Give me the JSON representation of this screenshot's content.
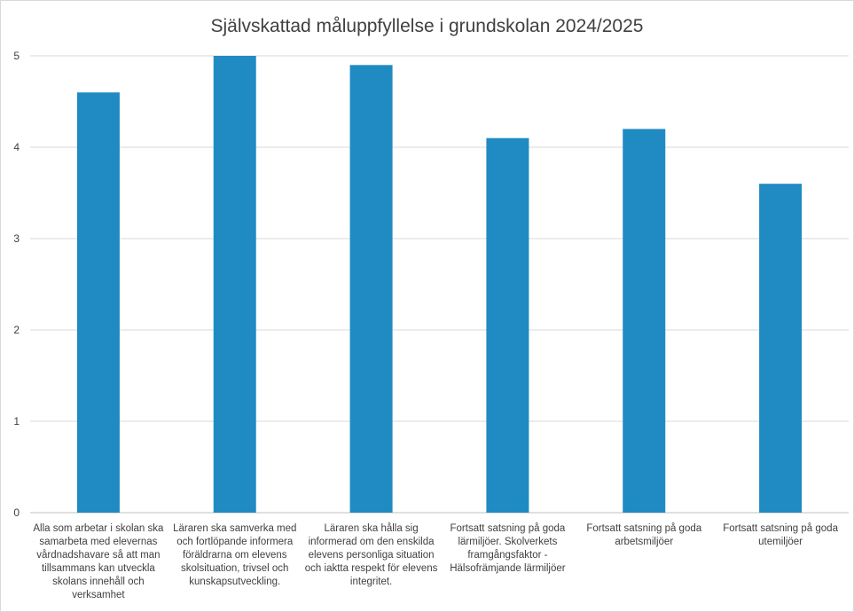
{
  "chart_data": {
    "type": "bar",
    "title": "Självskattad måluppfyllelse i grundskolan 2024/2025",
    "xlabel": "",
    "ylabel": "",
    "ylim": [
      0,
      5
    ],
    "yticks": [
      "0",
      "1",
      "2",
      "3",
      "4",
      "5"
    ],
    "grid": true,
    "categories": [
      "Alla som arbetar i skolan ska samarbeta med elevernas vårdnadshavare så att man tillsammans kan utveckla skolans innehåll och verksamhet",
      "Läraren ska samverka med och fortlöpande informera föräldrarna om elevens skolsituation, trivsel och kunskapsutveckling.",
      "Läraren ska hålla sig informerad om den enskilda elevens personliga situation och iaktta respekt för elevens integritet.",
      "Fortsatt satsning på goda lärmiljöer.  Skolverkets framgångsfaktor - Hälsofrämjande lärmiljöer",
      "Fortsatt satsning på goda arbetsmiljöer",
      "Fortsatt satsning på goda utemiljöer"
    ],
    "values": [
      4.6,
      5.0,
      4.9,
      4.1,
      4.2,
      3.6
    ],
    "bar_color": "#1f8bc2",
    "grid_color": "#d9d9d9",
    "axis_color": "#bfbfbf"
  }
}
